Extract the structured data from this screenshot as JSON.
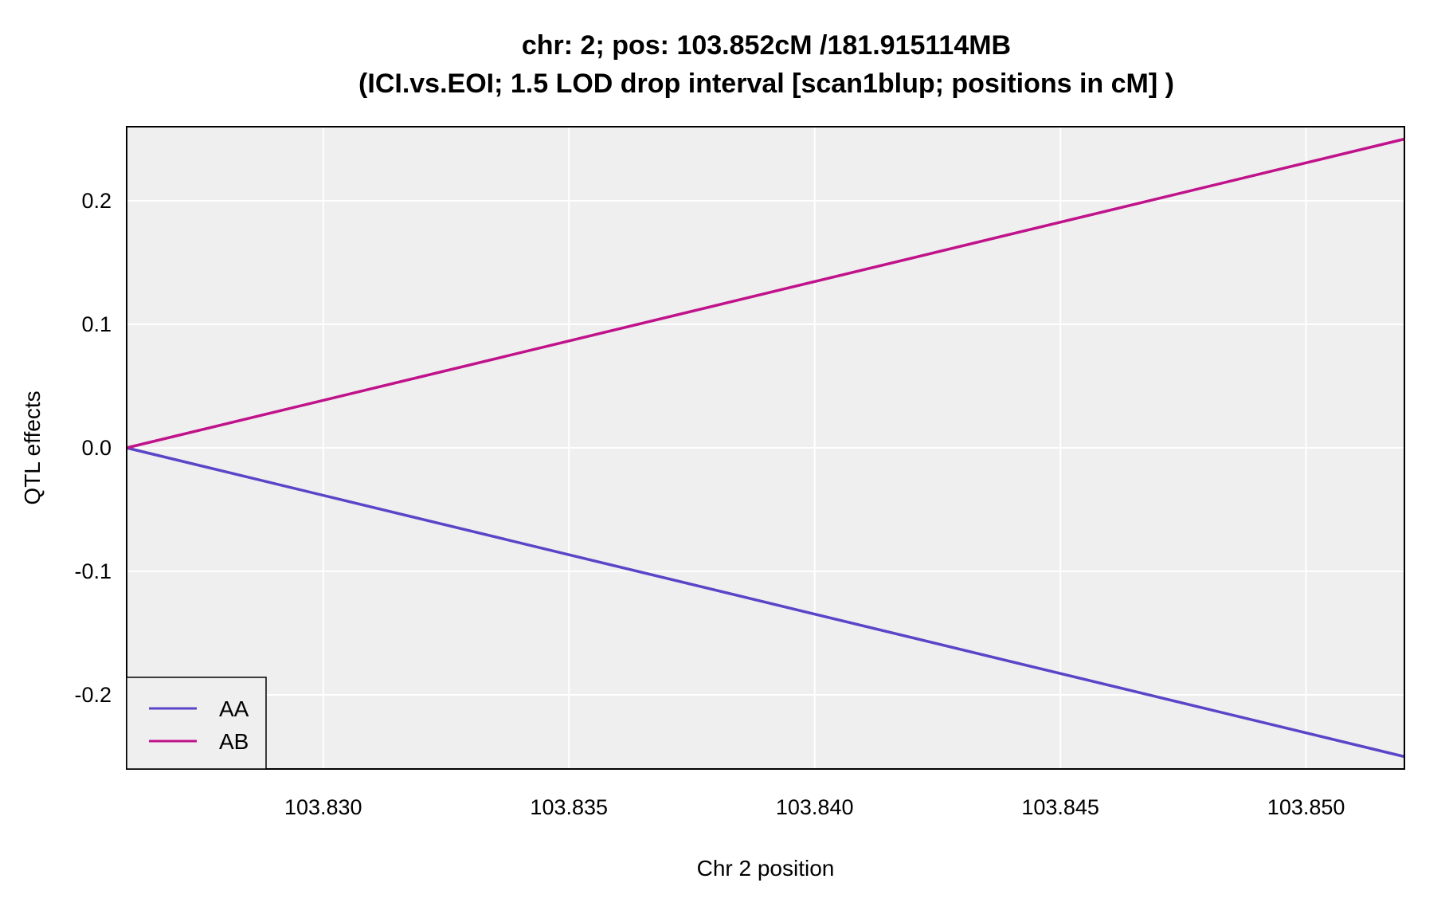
{
  "chart_data": {
    "type": "line",
    "title": "chr: 2; pos: 103.852cM /181.915114MB",
    "subtitle": "(ICI.vs.EOI; 1.5 LOD drop interval [scan1blup; positions in cM] )",
    "xlabel": "Chr 2 position",
    "ylabel": "QTL effects",
    "xlim": [
      103.826,
      103.852
    ],
    "ylim": [
      -0.26,
      0.26
    ],
    "xticks": [
      103.83,
      103.835,
      103.84,
      103.845,
      103.85
    ],
    "xtick_labels": [
      "103.830",
      "103.835",
      "103.840",
      "103.845",
      "103.850"
    ],
    "yticks": [
      -0.2,
      -0.1,
      0.0,
      0.1,
      0.2
    ],
    "ytick_labels": [
      "-0.2",
      "-0.1",
      "0.0",
      "0.1",
      "0.2"
    ],
    "grid": true,
    "legend_position": "bottom-left",
    "series": [
      {
        "name": "AA",
        "color": "#5A45C8",
        "x": [
          103.826,
          103.852
        ],
        "y": [
          0.0,
          -0.25
        ]
      },
      {
        "name": "AB",
        "color": "#C0128A",
        "x": [
          103.826,
          103.852
        ],
        "y": [
          0.0,
          0.25
        ]
      }
    ]
  }
}
